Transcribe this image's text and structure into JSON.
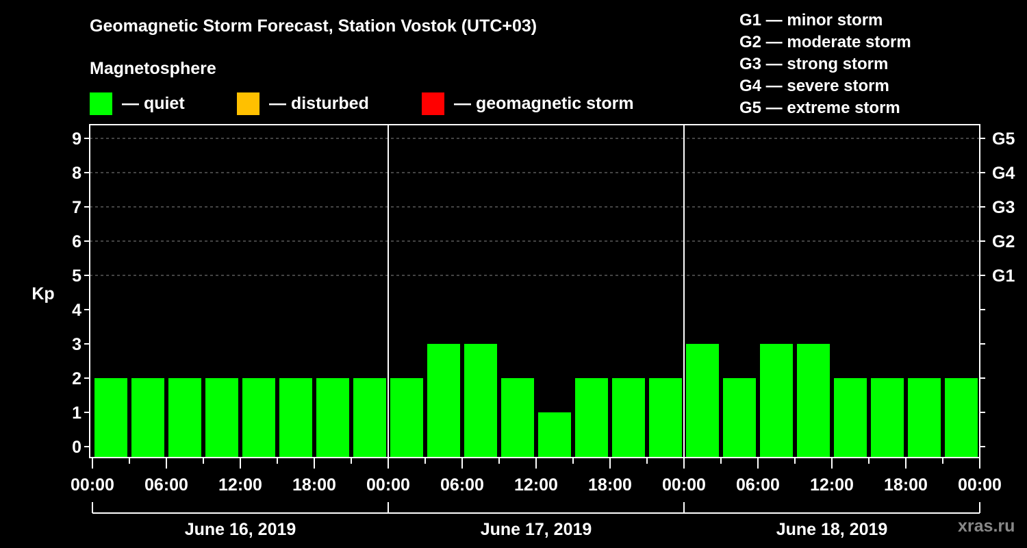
{
  "header": {
    "title": "Geomagnetic Storm Forecast, Station Vostok (UTC+03)",
    "subtitle": "Magnetosphere"
  },
  "legend": [
    {
      "label": "— quiet",
      "color": "#00ff00"
    },
    {
      "label": "— disturbed",
      "color": "#ffc000"
    },
    {
      "label": "— geomagnetic storm",
      "color": "#ff0000"
    }
  ],
  "storm_scale": [
    "G1 — minor storm",
    "G2 — moderate storm",
    "G3 — strong storm",
    "G4 — severe storm",
    "G5 — extreme storm"
  ],
  "watermark": "xras.ru",
  "chart_data": {
    "type": "bar",
    "title": "Geomagnetic Storm Forecast, Station Vostok (UTC+03)",
    "xlabel": "",
    "ylabel": "Kp",
    "ylim": [
      0,
      9
    ],
    "y_ticks": [
      0,
      1,
      2,
      3,
      4,
      5,
      6,
      7,
      8,
      9
    ],
    "right_axis_labels": [
      {
        "kp": 5,
        "label": "G1"
      },
      {
        "kp": 6,
        "label": "G2"
      },
      {
        "kp": 7,
        "label": "G3"
      },
      {
        "kp": 8,
        "label": "G4"
      },
      {
        "kp": 9,
        "label": "G5"
      }
    ],
    "grid": "dashed horizontal at Kp 5-9",
    "x_tick_labels": [
      "00:00",
      "06:00",
      "12:00",
      "18:00",
      "00:00",
      "06:00",
      "12:00",
      "18:00",
      "00:00",
      "06:00",
      "12:00",
      "18:00",
      "00:00"
    ],
    "days": [
      "June 16, 2019",
      "June 17, 2019",
      "June 18, 2019"
    ],
    "interval_hours": 3,
    "categories": [
      "06-16 00:00",
      "06-16 03:00",
      "06-16 06:00",
      "06-16 09:00",
      "06-16 12:00",
      "06-16 15:00",
      "06-16 18:00",
      "06-16 21:00",
      "06-17 00:00",
      "06-17 03:00",
      "06-17 06:00",
      "06-17 09:00",
      "06-17 12:00",
      "06-17 15:00",
      "06-17 18:00",
      "06-17 21:00",
      "06-18 00:00",
      "06-18 03:00",
      "06-18 06:00",
      "06-18 09:00",
      "06-18 12:00",
      "06-18 15:00",
      "06-18 18:00",
      "06-18 21:00"
    ],
    "values": [
      2,
      2,
      2,
      2,
      2,
      2,
      2,
      2,
      2,
      3,
      3,
      2,
      1,
      2,
      2,
      2,
      3,
      2,
      3,
      3,
      2,
      2,
      2,
      2
    ],
    "bar_status": "quiet",
    "bar_color": "#00ff00"
  }
}
